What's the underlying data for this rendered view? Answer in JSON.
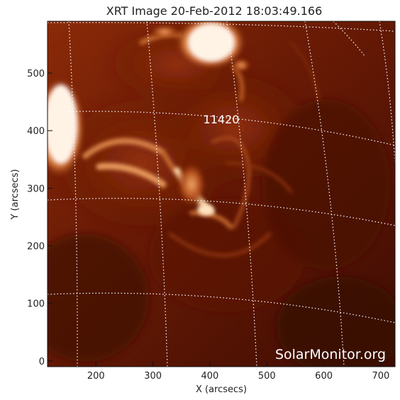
{
  "figure": {
    "title": "XRT Image 20-Feb-2012 18:03:49.166",
    "xlabel": "X (arcsecs)",
    "ylabel": "Y (arcsecs)",
    "watermark": "SolarMonitor.org",
    "region_label": "11420",
    "colors": {
      "background": "#ffffff",
      "frame": "#111111",
      "dark_plasma": "#3a0a02",
      "mid_plasma": "#7a1f06",
      "bright_plasma": "#e0a060",
      "saturated": "#fff3e6",
      "grid": "#ffffff"
    }
  },
  "axes": {
    "x_ticks": [
      "200",
      "300",
      "400",
      "500",
      "600",
      "700"
    ],
    "y_ticks": [
      "0",
      "100",
      "200",
      "300",
      "400",
      "500"
    ],
    "x_range_arcsec": [
      115,
      725
    ],
    "y_range_arcsec": [
      -10,
      590
    ]
  },
  "overlay": {
    "heliographic_grid": "dotted",
    "grid_color": "#ffffff"
  }
}
